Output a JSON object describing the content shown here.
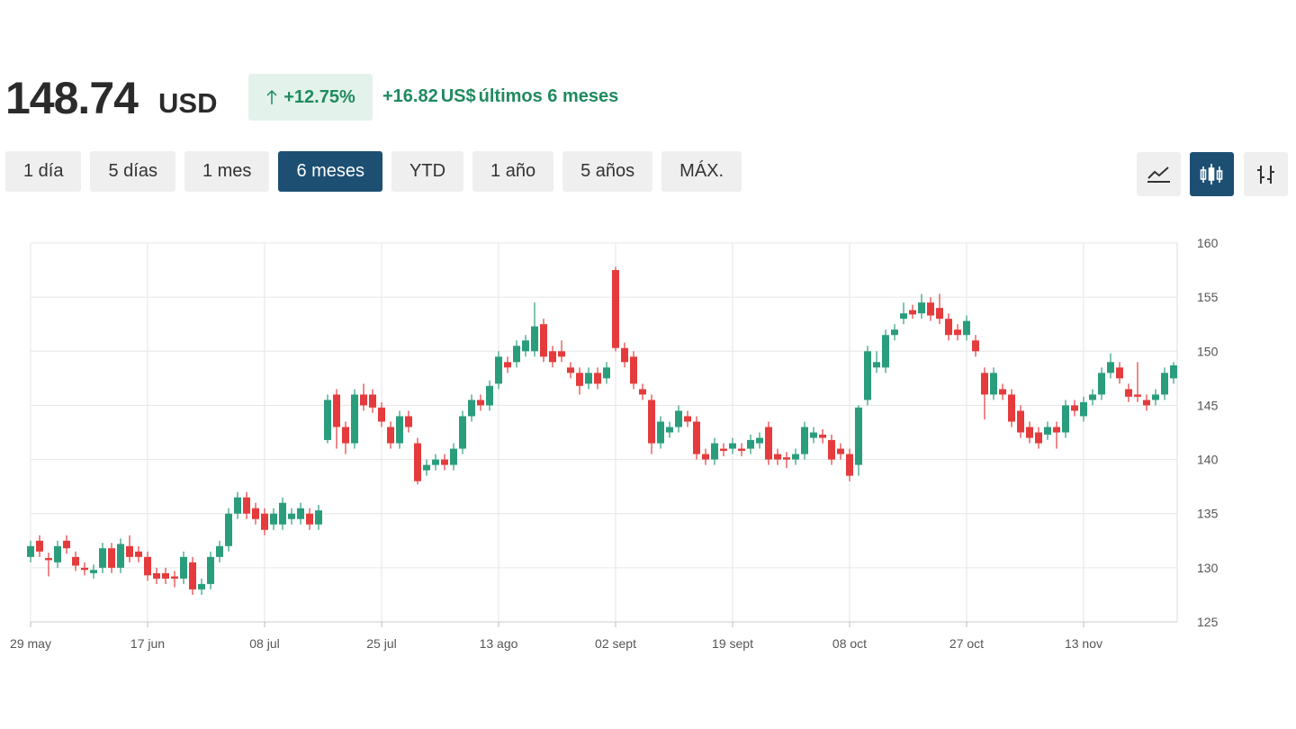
{
  "header": {
    "price": "148.74",
    "currency": "USD",
    "change_pct": "+12.75%",
    "change_abs": "+16.82",
    "change_unit": "US$",
    "period": "últimos 6 meses"
  },
  "ranges": {
    "buttons": [
      "1 día",
      "5 días",
      "1 mes",
      "6 meses",
      "YTD",
      "1 año",
      "5 años",
      "MÁX."
    ],
    "active": 3
  },
  "chart_data": {
    "type": "candlestick",
    "up_color": "#2a9d7c",
    "down_color": "#e53b3c",
    "grid": true,
    "categories": [
      "29 may",
      null,
      null,
      null,
      null,
      null,
      null,
      null,
      null,
      null,
      null,
      null,
      null,
      "17 jun",
      null,
      null,
      null,
      null,
      null,
      null,
      null,
      null,
      null,
      null,
      null,
      null,
      "08 jul",
      null,
      null,
      null,
      null,
      null,
      null,
      null,
      null,
      null,
      null,
      null,
      null,
      "25 jul",
      null,
      null,
      null,
      null,
      null,
      null,
      null,
      null,
      null,
      null,
      null,
      null,
      "13 ago",
      null,
      null,
      null,
      null,
      null,
      null,
      null,
      null,
      null,
      null,
      null,
      null,
      "02 sept",
      null,
      null,
      null,
      null,
      null,
      null,
      null,
      null,
      null,
      null,
      null,
      null,
      "19 sept",
      null,
      null,
      null,
      null,
      null,
      null,
      null,
      null,
      null,
      null,
      null,
      null,
      "08 oct",
      null,
      null,
      null,
      null,
      null,
      null,
      null,
      null,
      null,
      null,
      null,
      null,
      "27 oct",
      null,
      null,
      null,
      null,
      null,
      null,
      null,
      null,
      null,
      null,
      null,
      null,
      "13 nov",
      null,
      null,
      null,
      null,
      null,
      null,
      null,
      null,
      null,
      null
    ],
    "open": [
      131,
      132.5,
      130.9,
      130.5,
      132.5,
      131,
      130,
      129.5,
      130,
      131.8,
      130,
      132,
      131.5,
      131,
      129.5,
      129.5,
      129.2,
      129,
      130.5,
      128,
      128.5,
      131,
      132,
      135,
      136.5,
      135.5,
      135,
      134,
      134,
      134.5,
      134.5,
      135,
      134,
      141.8,
      146,
      143,
      141.5,
      146,
      146,
      144.8,
      143,
      141.5,
      144,
      141.5,
      139,
      139.5,
      140,
      139.5,
      141,
      144,
      145.5,
      145,
      147,
      149,
      149,
      150,
      150,
      152.5,
      150,
      150,
      148.5,
      148,
      147,
      148,
      147.5,
      157.5,
      150.3,
      149.5,
      146.5,
      145.5,
      141.5,
      142.5,
      143,
      144,
      143.5,
      140.5,
      140,
      141,
      141,
      141,
      141,
      141.5,
      143,
      140.5,
      140.2,
      140,
      140.5,
      142,
      142.3,
      141.8,
      141,
      140.5,
      139.5,
      145.5,
      148.5,
      148.5,
      151.5,
      153,
      153.8,
      153.5,
      154.5,
      154,
      153,
      152,
      151.5,
      151,
      148,
      146,
      146.5,
      146,
      144.5,
      143,
      142.5,
      142.3,
      143,
      142.5,
      145,
      144,
      145.5,
      146,
      148,
      148.5,
      146.5,
      146,
      145.5,
      145.5,
      146,
      147.5
    ],
    "high": [
      132.5,
      133,
      131.4,
      132.5,
      133,
      131.5,
      130.5,
      130.3,
      132.3,
      132.3,
      132.7,
      133,
      132,
      131.5,
      130,
      130,
      129.7,
      131.5,
      131,
      129,
      131.5,
      132.5,
      135.5,
      137,
      137,
      136,
      135.5,
      135.5,
      136.5,
      135.5,
      136,
      135.5,
      135.8,
      146,
      146.5,
      143.5,
      146.5,
      147,
      146.5,
      145.3,
      143.5,
      144.5,
      144.5,
      142,
      140,
      140.5,
      140.5,
      141.5,
      144.5,
      146,
      146,
      147.3,
      150,
      149.5,
      151,
      151.5,
      154.5,
      153,
      150.5,
      151,
      149,
      148.5,
      148.5,
      148.5,
      149,
      157.8,
      150.8,
      150,
      147,
      146,
      144,
      143.5,
      145,
      144.5,
      144,
      141,
      142,
      141.5,
      142,
      141.5,
      142.3,
      142.5,
      143.5,
      141,
      140.7,
      141,
      143.5,
      143,
      142.8,
      142.3,
      141.5,
      141,
      145,
      150.5,
      150,
      152,
      152.5,
      154.5,
      154.3,
      155.3,
      155,
      155.3,
      153.5,
      152.5,
      153.3,
      151.5,
      148.5,
      148.5,
      147,
      146.5,
      145,
      143.5,
      143,
      143.5,
      143.5,
      145.5,
      145.5,
      145.8,
      146.5,
      148.5,
      149.8,
      149,
      147,
      149,
      146,
      146.5,
      148.5,
      149
    ],
    "low": [
      130.5,
      131,
      129.2,
      130,
      131.3,
      129.7,
      129.3,
      129,
      129.5,
      129.5,
      129.5,
      130.5,
      130.5,
      128.8,
      128.5,
      128.5,
      128.2,
      128.5,
      127.5,
      127.5,
      128,
      130.5,
      131.5,
      134.5,
      134.5,
      134,
      133,
      133.5,
      133.5,
      134,
      134,
      133.5,
      133.5,
      141.5,
      141,
      140.5,
      141,
      144.5,
      144.3,
      143,
      141,
      141,
      142.5,
      137.7,
      138.5,
      139,
      139,
      139,
      140.5,
      143.5,
      144.5,
      144.5,
      146.5,
      148,
      148.5,
      149.5,
      149.5,
      149,
      148.5,
      149,
      147.5,
      146,
      146.5,
      146.5,
      147,
      150,
      148.5,
      146.5,
      145.5,
      140.5,
      141,
      142,
      142.5,
      143,
      140,
      139.5,
      139.5,
      140.3,
      140.5,
      140.3,
      140.5,
      141,
      139.5,
      139.5,
      139.2,
      139.5,
      140,
      141.5,
      141.5,
      139.5,
      140,
      138,
      138.5,
      145,
      148,
      148,
      151,
      152.5,
      153,
      153,
      152.8,
      152.5,
      151,
      151,
      151,
      149.5,
      143.7,
      145.5,
      145.5,
      143,
      142,
      141.5,
      141,
      141.8,
      141,
      142,
      144,
      143.5,
      145,
      145.5,
      147.5,
      147,
      145.3,
      145.3,
      144.5,
      145,
      145.5,
      147
    ],
    "close": [
      132,
      131.5,
      130.7,
      132,
      131.8,
      130.2,
      129.8,
      129.8,
      131.8,
      130,
      132.2,
      131,
      131,
      129.3,
      129,
      129,
      129,
      131,
      128,
      128.5,
      131,
      132,
      135,
      136.5,
      135,
      134.5,
      133.5,
      135,
      136,
      135,
      135.5,
      134,
      135.3,
      145.5,
      143,
      141.5,
      146,
      145,
      144.8,
      143.5,
      141.5,
      144,
      143,
      138,
      139.5,
      140,
      139.5,
      141,
      144,
      145.5,
      145,
      146.8,
      149.5,
      148.5,
      150.5,
      151,
      152.3,
      149.5,
      149,
      149.5,
      148,
      146.8,
      148,
      147,
      148.5,
      150.3,
      149,
      147,
      146,
      141.5,
      143.5,
      143,
      144.5,
      143.5,
      140.5,
      140,
      141.5,
      140.8,
      141.5,
      140.8,
      141.8,
      142,
      140,
      140,
      140,
      140.5,
      143,
      142.5,
      142,
      140,
      140.5,
      138.5,
      144.8,
      150,
      149,
      151.5,
      152,
      153.5,
      153.4,
      154.5,
      153.3,
      153,
      151.5,
      151.5,
      152.8,
      150,
      146,
      148,
      146,
      143.5,
      142.5,
      142,
      141.5,
      143,
      142.5,
      145,
      144.5,
      145.3,
      146,
      148,
      149,
      147.5,
      145.8,
      145.8,
      145,
      146,
      148,
      148.7
    ],
    "ylim": [
      125,
      160
    ],
    "yticks": [
      125,
      130,
      135,
      140,
      145,
      150,
      155,
      160
    ]
  }
}
